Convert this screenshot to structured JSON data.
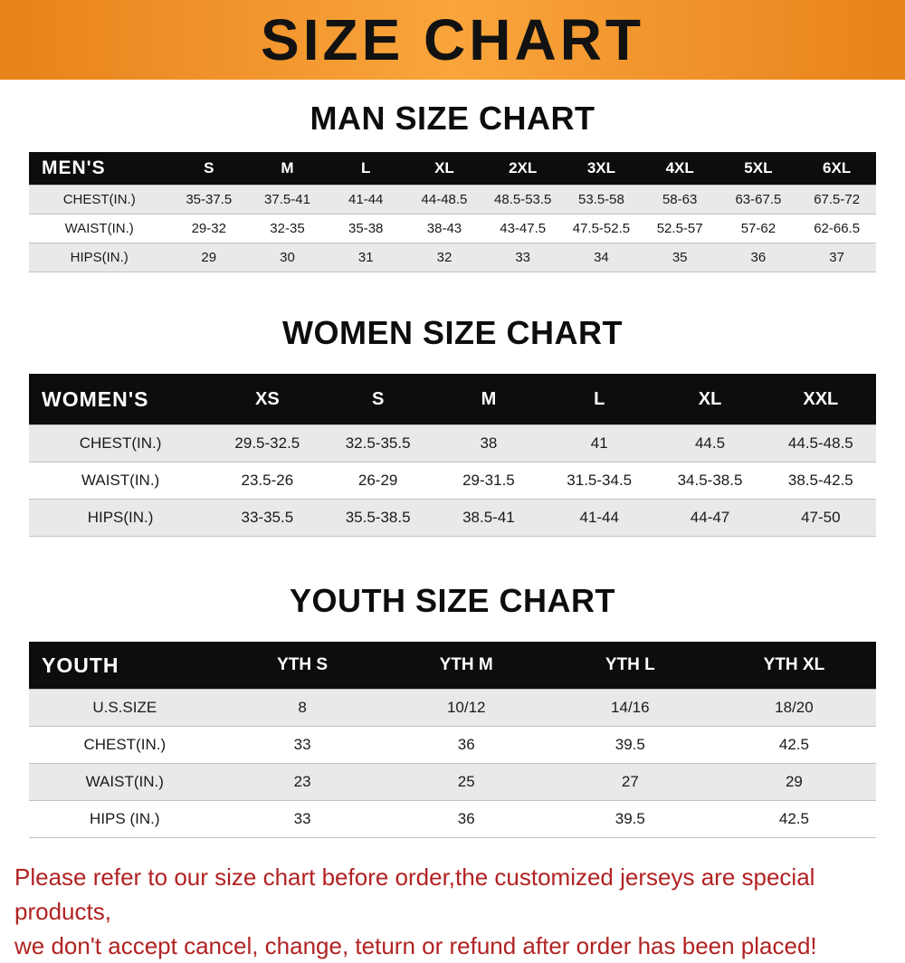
{
  "banner": {
    "title": "SIZE CHART",
    "background": "#f6921e"
  },
  "sections": [
    {
      "id": "men",
      "title": "MAN SIZE CHART",
      "header_label": "MEN'S",
      "columns": [
        "S",
        "M",
        "L",
        "XL",
        "2XL",
        "3XL",
        "4XL",
        "5XL",
        "6XL"
      ],
      "rows": [
        {
          "label": "CHEST(IN.)",
          "values": [
            "35-37.5",
            "37.5-41",
            "41-44",
            "44-48.5",
            "48.5-53.5",
            "53.5-58",
            "58-63",
            "63-67.5",
            "67.5-72"
          ]
        },
        {
          "label": "WAIST(IN.)",
          "values": [
            "29-32",
            "32-35",
            "35-38",
            "38-43",
            "43-47.5",
            "47.5-52.5",
            "52.5-57",
            "57-62",
            "62-66.5"
          ]
        },
        {
          "label": "HIPS(IN.)",
          "values": [
            "29",
            "30",
            "31",
            "32",
            "33",
            "34",
            "35",
            "36",
            "37"
          ]
        }
      ]
    },
    {
      "id": "women",
      "title": "WOMEN SIZE CHART",
      "header_label": "WOMEN'S",
      "columns": [
        "XS",
        "S",
        "M",
        "L",
        "XL",
        "XXL"
      ],
      "rows": [
        {
          "label": "CHEST(IN.)",
          "values": [
            "29.5-32.5",
            "32.5-35.5",
            "38",
            "41",
            "44.5",
            "44.5-48.5"
          ]
        },
        {
          "label": "WAIST(IN.)",
          "values": [
            "23.5-26",
            "26-29",
            "29-31.5",
            "31.5-34.5",
            "34.5-38.5",
            "38.5-42.5"
          ]
        },
        {
          "label": "HIPS(IN.)",
          "values": [
            "33-35.5",
            "35.5-38.5",
            "38.5-41",
            "41-44",
            "44-47",
            "47-50"
          ]
        }
      ]
    },
    {
      "id": "youth",
      "title": "YOUTH SIZE CHART",
      "header_label": "YOUTH",
      "columns": [
        "YTH S",
        "YTH M",
        "YTH L",
        "YTH XL"
      ],
      "rows": [
        {
          "label": "U.S.SIZE",
          "values": [
            "8",
            "10/12",
            "14/16",
            "18/20"
          ]
        },
        {
          "label": "CHEST(IN.)",
          "values": [
            "33",
            "36",
            "39.5",
            "42.5"
          ]
        },
        {
          "label": "WAIST(IN.)",
          "values": [
            "23",
            "25",
            "27",
            "29"
          ]
        },
        {
          "label": "HIPS (IN.)",
          "values": [
            "33",
            "36",
            "39.5",
            "42.5"
          ]
        }
      ]
    }
  ],
  "footer": {
    "line1": "Please refer to our size chart before order,the customized jerseys are special products,",
    "line2": "we don't accept cancel, change, teturn or refund after order has been placed!",
    "color": "#b22222"
  }
}
